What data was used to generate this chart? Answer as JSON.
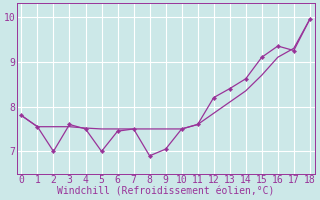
{
  "xlabel": "Windchill (Refroidissement éolien,°C)",
  "x_line1": [
    0,
    1,
    2,
    3,
    4,
    5,
    6,
    7,
    8,
    9,
    10,
    11,
    12,
    13,
    14,
    15,
    16,
    17,
    18
  ],
  "y_line1": [
    7.8,
    7.55,
    7.0,
    7.6,
    7.5,
    7.0,
    7.45,
    7.5,
    6.9,
    7.05,
    7.5,
    7.6,
    8.2,
    8.4,
    8.62,
    9.1,
    9.35,
    9.25,
    9.95
  ],
  "x_line2": [
    0,
    1,
    2,
    3,
    4,
    5,
    6,
    7,
    8,
    9,
    10,
    11,
    12,
    13,
    14,
    15,
    16,
    17,
    18
  ],
  "y_line2": [
    7.8,
    7.55,
    7.55,
    7.55,
    7.52,
    7.5,
    7.5,
    7.5,
    7.5,
    7.5,
    7.5,
    7.6,
    7.85,
    8.1,
    8.35,
    8.7,
    9.1,
    9.3,
    9.95
  ],
  "line_color": "#993399",
  "bg_color": "#cce8e8",
  "grid_color": "#ffffff",
  "axis_color": "#993399",
  "tick_color": "#993399",
  "ylim": [
    6.5,
    10.3
  ],
  "xlim": [
    -0.3,
    18.3
  ],
  "yticks": [
    7,
    8,
    9,
    10
  ],
  "xticks": [
    0,
    1,
    2,
    3,
    4,
    5,
    6,
    7,
    8,
    9,
    10,
    11,
    12,
    13,
    14,
    15,
    16,
    17,
    18
  ],
  "xlabel_fontsize": 7,
  "tick_fontsize": 7,
  "figwidth": 3.2,
  "figheight": 2.0,
  "dpi": 100
}
